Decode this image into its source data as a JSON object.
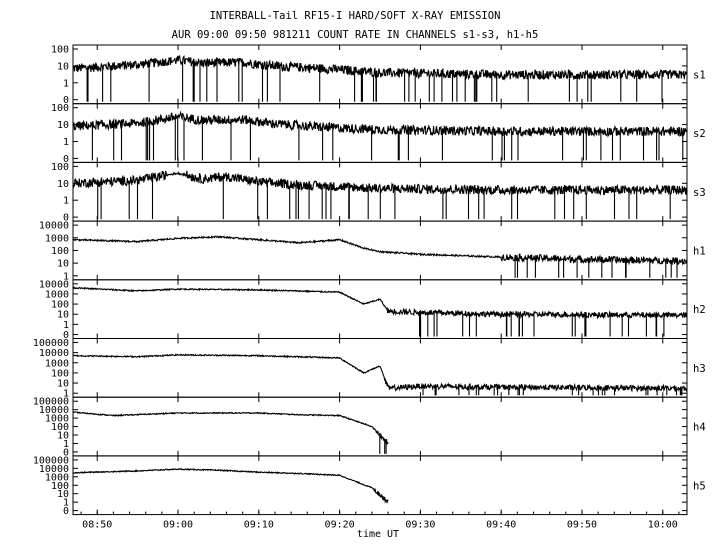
{
  "chart_data": {
    "type": "line",
    "title": "INTERBALL-Tail RF15-I HARD/SOFT X-RAY EMISSION",
    "subtitle": "AUR 09:00 09:50 981211  COUNT RATE IN CHANNELS s1-s3, h1-h5",
    "xlabel": "time UT",
    "x_ticks": [
      "08:50",
      "09:00",
      "09:10",
      "09:20",
      "09:30",
      "09:40",
      "09:50",
      "10:00"
    ],
    "xlim": [
      "08:47",
      "10:03"
    ],
    "grid": false,
    "legend": "none",
    "yscale": "log",
    "panels": [
      {
        "name": "s1",
        "yticks": [
          "100",
          "10",
          "1",
          "0"
        ],
        "x": [
          "08:47",
          "08:55",
          "09:00",
          "09:03",
          "09:08",
          "09:12",
          "09:18",
          "09:25",
          "09:40",
          "10:03"
        ],
        "y": [
          7,
          12,
          22,
          15,
          16,
          10,
          7,
          4,
          3,
          3
        ]
      },
      {
        "name": "s2",
        "yticks": [
          "100",
          "10",
          "1",
          "0"
        ],
        "x": [
          "08:47",
          "08:55",
          "09:00",
          "09:03",
          "09:08",
          "09:12",
          "09:18",
          "09:25",
          "09:40",
          "10:03"
        ],
        "y": [
          8,
          12,
          30,
          18,
          20,
          11,
          7,
          5,
          4,
          4
        ]
      },
      {
        "name": "s3",
        "yticks": [
          "100",
          "10",
          "1",
          "0"
        ],
        "x": [
          "08:47",
          "08:55",
          "09:00",
          "09:03",
          "09:06",
          "09:10",
          "09:15",
          "09:25",
          "09:40",
          "10:03"
        ],
        "y": [
          10,
          15,
          40,
          18,
          25,
          12,
          8,
          5,
          4,
          4
        ]
      },
      {
        "name": "h1",
        "yticks": [
          "10000",
          "1000",
          "100",
          "10",
          "1"
        ],
        "x": [
          "08:47",
          "08:55",
          "09:00",
          "09:05",
          "09:10",
          "09:15",
          "09:20",
          "09:23",
          "09:25",
          "09:30",
          "09:40",
          "09:50",
          "10:03"
        ],
        "y": [
          700,
          500,
          900,
          1200,
          700,
          400,
          700,
          150,
          80,
          50,
          30,
          20,
          15
        ]
      },
      {
        "name": "h2",
        "yticks": [
          "10000",
          "1000",
          "100",
          "10",
          "1",
          "0"
        ],
        "x": [
          "08:47",
          "08:55",
          "09:00",
          "09:10",
          "09:20",
          "09:23",
          "09:25",
          "09:26",
          "09:30",
          "09:40",
          "10:03"
        ],
        "y": [
          4000,
          2000,
          3000,
          2500,
          1500,
          100,
          300,
          20,
          15,
          10,
          8
        ]
      },
      {
        "name": "h3",
        "yticks": [
          "100000",
          "10000",
          "1000",
          "100",
          "10",
          "1"
        ],
        "x": [
          "08:47",
          "08:55",
          "09:00",
          "09:10",
          "09:20",
          "09:23",
          "09:25",
          "09:26",
          "09:30",
          "09:40",
          "10:03"
        ],
        "y": [
          5000,
          4000,
          6000,
          5000,
          3000,
          100,
          500,
          3,
          5,
          4,
          3
        ]
      },
      {
        "name": "h4",
        "yticks": [
          "100000",
          "10000",
          "1000",
          "100",
          "10",
          "1",
          "0"
        ],
        "x": [
          "08:47",
          "08:52",
          "09:00",
          "09:10",
          "09:15",
          "09:20",
          "09:24",
          "09:26"
        ],
        "y": [
          5000,
          2000,
          4000,
          4000,
          2500,
          2000,
          100,
          1
        ]
      },
      {
        "name": "h5",
        "yticks": [
          "100000",
          "10000",
          "1000",
          "100",
          "10",
          "1",
          "0"
        ],
        "x": [
          "08:47",
          "08:55",
          "09:00",
          "09:05",
          "09:10",
          "09:15",
          "09:20",
          "09:24",
          "09:26"
        ],
        "y": [
          3000,
          5000,
          8000,
          6000,
          3500,
          2500,
          1500,
          50,
          1
        ]
      }
    ]
  }
}
